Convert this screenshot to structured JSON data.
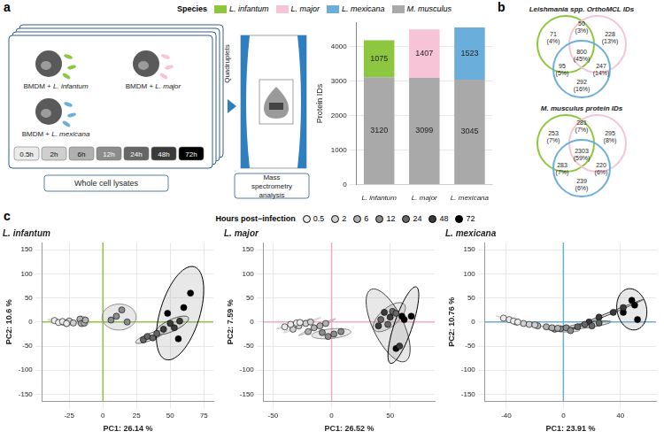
{
  "panel_letters": [
    "a",
    "b",
    "c"
  ],
  "schematic": {
    "conditions": [
      "BMDM + L. infantum",
      "BMDM + L. major",
      "BMDM + L. mexicana"
    ],
    "replicates_label": "Quadruplets",
    "time_points": [
      "0.5h",
      "2h",
      "6h",
      "12h",
      "24h",
      "48h",
      "72h"
    ],
    "sample_label": "Whole cell lysates",
    "analysis_label": "Mass spectrometry analysis"
  },
  "species_legend_title": "Species",
  "venn": [
    {
      "title": "Leishmania spp. OrthoMCL IDs",
      "circles": [
        "L. infantum",
        "L. major",
        "L. mexicana"
      ],
      "regions": [
        {
          "sets": [
            "L. infantum"
          ],
          "count": 71,
          "share": "(4%)"
        },
        {
          "sets": [
            "L. infantum",
            "L. major"
          ],
          "count": 50,
          "share": "(3%)"
        },
        {
          "sets": [
            "L. major"
          ],
          "count": 228,
          "share": "(13%)"
        },
        {
          "sets": [
            "L. infantum",
            "L. major",
            "L. mexicana"
          ],
          "count": 800,
          "share": "(45%)"
        },
        {
          "sets": [
            "L. infantum",
            "L. mexicana"
          ],
          "count": 95,
          "share": "(5%)"
        },
        {
          "sets": [
            "L. major",
            "L. mexicana"
          ],
          "count": 247,
          "share": "(14%)"
        },
        {
          "sets": [
            "L. mexicana"
          ],
          "count": 292,
          "share": "(16%)"
        }
      ]
    },
    {
      "title": "M. musculus protein IDs",
      "circles": [
        "L. infantum",
        "L. major",
        "L. mexicana"
      ],
      "regions": [
        {
          "sets": [
            "L. infantum"
          ],
          "count": 253,
          "share": "(7%)"
        },
        {
          "sets": [
            "L. infantum",
            "L. major"
          ],
          "count": 281,
          "share": "(7%)"
        },
        {
          "sets": [
            "L. major"
          ],
          "count": 295,
          "share": "(8%)"
        },
        {
          "sets": [
            "L. infantum",
            "L. major",
            "L. mexicana"
          ],
          "count": 2303,
          "share": "(59%)"
        },
        {
          "sets": [
            "L. infantum",
            "L. mexicana"
          ],
          "count": 283,
          "share": "(7%)"
        },
        {
          "sets": [
            "L. major",
            "L. mexicana"
          ],
          "count": 220,
          "share": "(6%)"
        },
        {
          "sets": [
            "L. mexicana"
          ],
          "count": 239,
          "share": "(6%)"
        }
      ]
    }
  ],
  "hours_legend_title": "Hours post−infection",
  "chart_data": [
    {
      "type": "bar",
      "stacked": true,
      "data_labels": true,
      "legend": "top",
      "grid": true,
      "y_label": "Protein IDs",
      "categories": [
        "L. infantum",
        "L. major",
        "L. mexicana"
      ],
      "ylim": [
        0,
        4700
      ],
      "yticks": [
        0,
        1000,
        2000,
        3000,
        4000
      ],
      "series": [
        {
          "name": "M. musculus",
          "color": "#a9a9a9",
          "values": [
            3120,
            3099,
            3045
          ]
        },
        {
          "colors": [
            "#8dc63f",
            "#f7c3d7",
            "#6aaedc"
          ],
          "values": [
            1075,
            1407,
            1523
          ]
        }
      ]
    },
    {
      "type": "scatter",
      "title": "L. infantum",
      "x_label": "PC1: 26.14 %",
      "y_label": "PC2: 10.6 %",
      "color": "#8dc63f",
      "grid": true,
      "marker": "circle",
      "xlim": [
        -45,
        82
      ],
      "xticks": [
        -25,
        0,
        25,
        50,
        75
      ],
      "ylim": [
        -165,
        165
      ],
      "yticks": [
        -150,
        -100,
        -50,
        0,
        50,
        100,
        150
      ],
      "series": [
        {
          "name": "0.5",
          "color": "#ebebeb",
          "x": [
            -36,
            -33,
            -30,
            -27
          ],
          "y": [
            3,
            -1,
            1,
            -3
          ]
        },
        {
          "name": "2",
          "color": "#cfcfcf",
          "x": [
            -30,
            -27,
            -25,
            -22
          ],
          "y": [
            0,
            -3,
            2,
            -2
          ]
        },
        {
          "name": "6",
          "color": "#b0b0b0",
          "x": [
            -17,
            -16,
            -14,
            -13
          ],
          "y": [
            6,
            -3,
            -2,
            4
          ]
        },
        {
          "name": "12",
          "color": "#8c8c8c",
          "x": [
            6,
            10,
            14,
            18
          ],
          "y": [
            4,
            12,
            25,
            0
          ]
        },
        {
          "name": "24",
          "color": "#666666",
          "x": [
            30,
            33,
            37,
            40
          ],
          "y": [
            -37,
            -30,
            -33,
            -24
          ]
        },
        {
          "name": "48",
          "color": "#3a3a3a",
          "x": [
            45,
            50,
            53,
            57
          ],
          "y": [
            -15,
            -3,
            -12,
            2
          ]
        },
        {
          "name": "72",
          "color": "#000000",
          "x": [
            48,
            56,
            60,
            65
          ],
          "y": [
            18,
            -35,
            30,
            60
          ]
        }
      ]
    },
    {
      "type": "scatter",
      "title": "L. major",
      "x_label": "PC1: 26.52 %",
      "y_label": "PC2: 7.59 %",
      "color": "#f7a8c8",
      "grid": true,
      "marker": "circle",
      "xlim": [
        -58,
        88
      ],
      "xticks": [
        -50,
        0,
        50
      ],
      "ylim": [
        -165,
        165
      ],
      "yticks": [
        -150,
        -100,
        -50,
        0,
        50,
        100,
        150
      ],
      "series": [
        {
          "name": "0.5",
          "color": "#ebebeb",
          "x": [
            -40,
            -35,
            -30,
            -27
          ],
          "y": [
            -10,
            -5,
            -2,
            -1
          ]
        },
        {
          "name": "2",
          "color": "#cfcfcf",
          "x": [
            -33,
            -28,
            -22,
            -18
          ],
          "y": [
            -15,
            -8,
            -3,
            0
          ]
        },
        {
          "name": "6",
          "color": "#b0b0b0",
          "x": [
            -20,
            -15,
            -10,
            -5
          ],
          "y": [
            -20,
            -12,
            -8,
            -3
          ]
        },
        {
          "name": "12",
          "color": "#8c8c8c",
          "x": [
            -8,
            -3,
            2,
            8
          ],
          "y": [
            -22,
            -30,
            -25,
            -20
          ]
        },
        {
          "name": "24",
          "color": "#666666",
          "x": [
            42,
            48,
            52,
            55
          ],
          "y": [
            5,
            -5,
            22,
            18
          ]
        },
        {
          "name": "48",
          "color": "#3a3a3a",
          "x": [
            40,
            45,
            50,
            58
          ],
          "y": [
            -8,
            20,
            10,
            -50
          ]
        },
        {
          "name": "72",
          "color": "#000000",
          "x": [
            55,
            60,
            62,
            68
          ],
          "y": [
            -55,
            12,
            5,
            12
          ]
        }
      ]
    },
    {
      "type": "scatter",
      "title": "L. mexicana",
      "x_label": "PC1: 23.91 %",
      "y_label": "PC2: 10.76 %",
      "color": "#6aaedc",
      "grid": true,
      "marker": "circle",
      "xlim": [
        -55,
        65
      ],
      "xticks": [
        -40,
        0,
        40
      ],
      "ylim": [
        -165,
        165
      ],
      "yticks": [
        -150,
        -100,
        -50,
        0,
        50,
        100,
        150
      ],
      "series": [
        {
          "name": "0.5",
          "color": "#ebebeb",
          "x": [
            -42,
            -38,
            -35,
            -32
          ],
          "y": [
            8,
            5,
            2,
            0
          ]
        },
        {
          "name": "2",
          "color": "#cfcfcf",
          "x": [
            -33,
            -28,
            -24,
            -20
          ],
          "y": [
            0,
            -3,
            -5,
            -6
          ]
        },
        {
          "name": "6",
          "color": "#b0b0b0",
          "x": [
            -18,
            -12,
            -8,
            -4
          ],
          "y": [
            -8,
            -10,
            -12,
            -13
          ]
        },
        {
          "name": "12",
          "color": "#8c8c8c",
          "x": [
            -6,
            -2,
            2,
            5
          ],
          "y": [
            -15,
            -14,
            -12,
            -18
          ]
        },
        {
          "name": "24",
          "color": "#666666",
          "x": [
            10,
            15,
            20,
            25
          ],
          "y": [
            -10,
            -5,
            -8,
            -2
          ]
        },
        {
          "name": "48",
          "color": "#3a3a3a",
          "x": [
            18,
            25,
            35,
            42
          ],
          "y": [
            0,
            10,
            20,
            30
          ]
        },
        {
          "name": "72",
          "color": "#000000",
          "x": [
            42,
            48,
            50,
            52
          ],
          "y": [
            20,
            45,
            35,
            5
          ]
        }
      ]
    }
  ]
}
